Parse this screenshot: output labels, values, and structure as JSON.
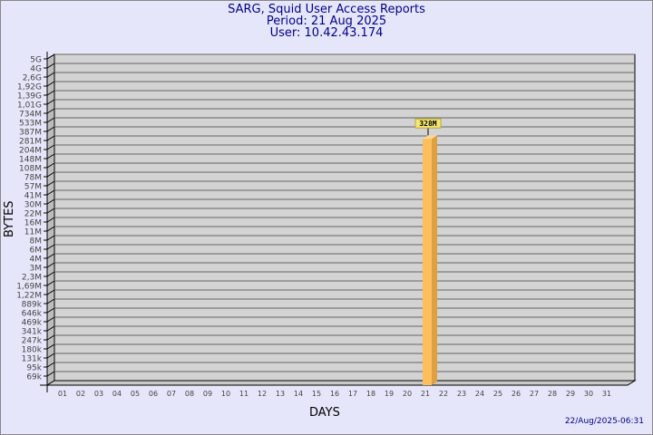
{
  "header": {
    "title": "SARG, Squid User Access Reports",
    "period": "Period: 21 Aug 2025",
    "user": "User: 10.42.43.174"
  },
  "footer": {
    "generated": "22/Aug/2025-06:31"
  },
  "colors": {
    "background": "#e6e6fa",
    "plot": "#d3d3d3",
    "bar": "#fbbf5e",
    "bar_side": "#e0a040",
    "title": "#00008b",
    "label_box": "#f5e66e"
  },
  "chart_data": {
    "type": "bar",
    "title": "SARG, Squid User Access Reports",
    "xlabel": "DAYS",
    "ylabel": "BYTES",
    "y_scale": "log",
    "grid": true,
    "y_ticks": [
      "5G",
      "4G",
      "2,6G",
      "1,92G",
      "1,39G",
      "1,01G",
      "734M",
      "533M",
      "387M",
      "281M",
      "204M",
      "148M",
      "108M",
      "78M",
      "57M",
      "41M",
      "30M",
      "22M",
      "16M",
      "11M",
      "8M",
      "6M",
      "4M",
      "3M",
      "2,3M",
      "1,69M",
      "1,22M",
      "889k",
      "646k",
      "469k",
      "341k",
      "247k",
      "180k",
      "131k",
      "95k",
      "69k"
    ],
    "categories": [
      "01",
      "02",
      "03",
      "04",
      "05",
      "06",
      "07",
      "08",
      "09",
      "10",
      "11",
      "12",
      "13",
      "14",
      "15",
      "16",
      "17",
      "18",
      "19",
      "20",
      "21",
      "22",
      "23",
      "24",
      "25",
      "26",
      "27",
      "28",
      "29",
      "30",
      "31"
    ],
    "bars": [
      {
        "day": "21",
        "value": "328M",
        "label": "328M"
      }
    ]
  }
}
